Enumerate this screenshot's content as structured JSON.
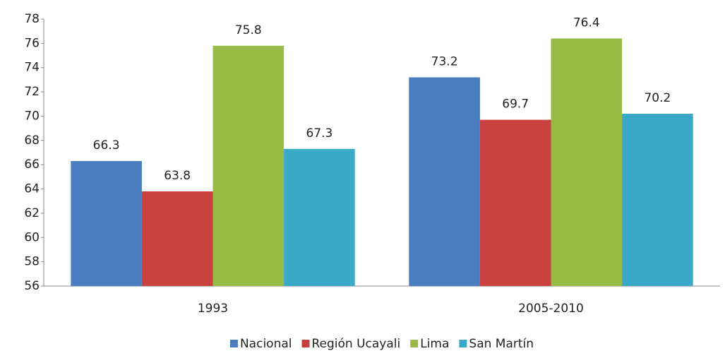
{
  "chart_data": {
    "type": "bar",
    "categories": [
      "1993",
      "2005-2010"
    ],
    "series": [
      {
        "name": "Nacional",
        "color": "#4a7cc0",
        "values": [
          66.3,
          73.2
        ]
      },
      {
        "name": "Región Ucayali",
        "color": "#c8413e",
        "values": [
          63.8,
          69.7
        ]
      },
      {
        "name": "Lima",
        "color": "#97bb45",
        "values": [
          75.8,
          76.4
        ]
      },
      {
        "name": "San Martín",
        "color": "#3aa9c8",
        "values": [
          67.3,
          70.2
        ]
      }
    ],
    "ylim": [
      56,
      78
    ],
    "yticks": [
      56,
      58,
      60,
      62,
      64,
      66,
      68,
      70,
      72,
      74,
      76,
      78
    ],
    "grid": false,
    "legend": "bottom"
  }
}
